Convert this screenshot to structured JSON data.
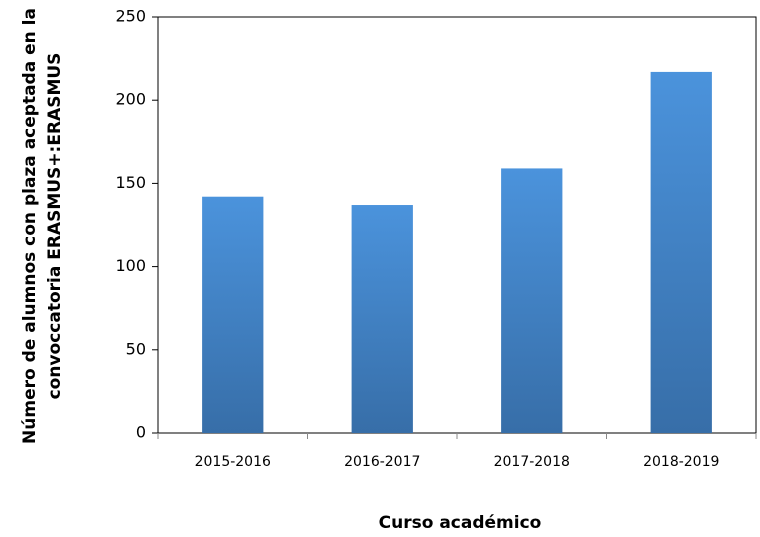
{
  "chart_data": {
    "type": "bar",
    "categories": [
      "2015-2016",
      "2016-2017",
      "2017-2018",
      "2018-2019"
    ],
    "values": [
      142,
      137,
      159,
      217
    ],
    "color": "#4a8fd6",
    "xlabel": "Curso académico",
    "ylabel": [
      "Número de alumnos con plaza aceptada en la",
      "convoccatoria ERASMUS+:ERASMUS"
    ],
    "ylim": [
      0,
      250
    ],
    "yticks": [
      0,
      50,
      100,
      150,
      200,
      250
    ],
    "grid": false
  }
}
